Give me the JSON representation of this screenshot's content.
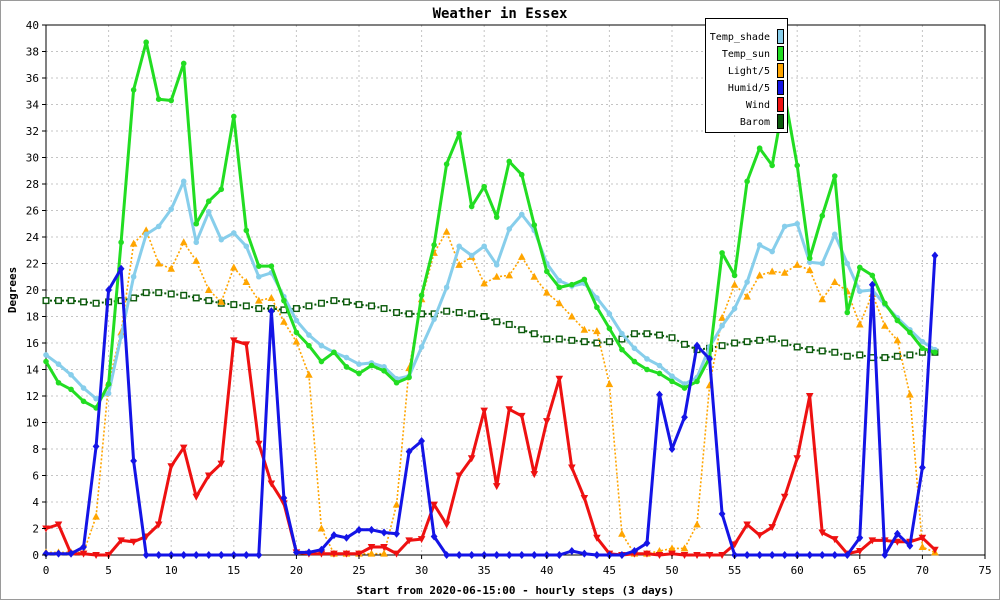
{
  "chart_data": {
    "type": "line",
    "title": "Weather in Essex",
    "xlabel": "Start from 2020-06-15:00 - hourly steps (3 days)",
    "ylabel": "Degrees",
    "xlim": [
      0,
      75
    ],
    "ylim": [
      0,
      40
    ],
    "xticks": [
      0,
      5,
      10,
      15,
      20,
      25,
      30,
      35,
      40,
      45,
      50,
      55,
      60,
      65,
      70,
      75
    ],
    "yticks": [
      0,
      2,
      4,
      6,
      8,
      10,
      12,
      14,
      16,
      18,
      20,
      22,
      24,
      26,
      28,
      30,
      32,
      34,
      36,
      38,
      40
    ],
    "grid": true,
    "legend": "top-right",
    "x": [
      0,
      1,
      2,
      3,
      4,
      5,
      6,
      7,
      8,
      9,
      10,
      11,
      12,
      13,
      14,
      15,
      16,
      17,
      18,
      19,
      20,
      21,
      22,
      23,
      24,
      25,
      26,
      27,
      28,
      29,
      30,
      31,
      32,
      33,
      34,
      35,
      36,
      37,
      38,
      39,
      40,
      41,
      42,
      43,
      44,
      45,
      46,
      47,
      48,
      49,
      50,
      51,
      52,
      53,
      54,
      55,
      56,
      57,
      58,
      59,
      60,
      61,
      62,
      63,
      64,
      65,
      66,
      67,
      68,
      69,
      70,
      71
    ],
    "series": [
      {
        "name": "Temp_shade",
        "color": "#87ceeb",
        "marker": "circle",
        "line_style": "solid",
        "values": [
          15.1,
          14.4,
          13.6,
          12.6,
          11.8,
          12.2,
          16.5,
          21.0,
          24.2,
          24.8,
          26.1,
          28.2,
          23.6,
          25.9,
          23.8,
          24.3,
          23.3,
          21.0,
          21.3,
          19.5,
          17.7,
          16.6,
          15.8,
          15.3,
          14.9,
          14.4,
          14.5,
          14.2,
          13.3,
          13.5,
          15.7,
          17.8,
          20.2,
          23.3,
          22.6,
          23.3,
          21.9,
          24.6,
          25.7,
          24.5,
          22.0,
          20.7,
          20.3,
          20.5,
          19.4,
          18.2,
          16.7,
          15.6,
          14.8,
          14.3,
          13.5,
          12.9,
          13.4,
          15.7,
          17.3,
          18.6,
          20.6,
          23.4,
          22.9,
          24.8,
          25.0,
          22.1,
          22.0,
          24.2,
          22.0,
          19.9,
          20.0,
          18.9,
          17.9,
          17.0,
          16.1,
          15.5
        ]
      },
      {
        "name": "Temp_sun",
        "color": "#22dd22",
        "marker": "circle",
        "line_style": "solid",
        "values": [
          14.6,
          13.0,
          12.5,
          11.6,
          11.1,
          12.9,
          23.6,
          35.1,
          38.7,
          34.4,
          34.3,
          37.1,
          25.0,
          26.7,
          27.6,
          33.1,
          24.5,
          21.8,
          21.8,
          19.2,
          16.8,
          15.8,
          14.6,
          15.3,
          14.2,
          13.7,
          14.3,
          13.9,
          13.0,
          13.4,
          19.6,
          23.4,
          29.5,
          31.8,
          26.3,
          27.8,
          25.5,
          29.7,
          28.7,
          24.9,
          21.4,
          20.2,
          20.4,
          20.8,
          18.7,
          17.1,
          15.5,
          14.6,
          14.0,
          13.7,
          13.1,
          12.6,
          13.1,
          14.9,
          22.8,
          21.1,
          28.2,
          30.7,
          29.4,
          34.7,
          29.4,
          22.4,
          25.6,
          28.6,
          18.3,
          21.7,
          21.1,
          19.0,
          17.7,
          16.8,
          15.6,
          15.3
        ]
      },
      {
        "name": "Light/5",
        "color": "#ffa500",
        "marker": "triangle-up",
        "line_style": "dotted",
        "values": [
          0.2,
          0.2,
          0.2,
          0.2,
          2.9,
          13.0,
          16.8,
          23.5,
          24.5,
          22.0,
          21.6,
          23.6,
          22.2,
          20.0,
          19.1,
          21.7,
          20.6,
          19.2,
          19.4,
          17.6,
          16.1,
          13.6,
          2.0,
          0.1,
          0.1,
          0.1,
          0.1,
          0.1,
          3.8,
          14.1,
          19.3,
          22.8,
          24.4,
          21.9,
          22.5,
          20.5,
          21.0,
          21.1,
          22.5,
          21.0,
          19.8,
          19.0,
          18.0,
          17.0,
          16.9,
          12.9,
          1.6,
          0.1,
          0.1,
          0.3,
          0.5,
          0.5,
          2.3,
          12.8,
          17.9,
          20.4,
          19.5,
          21.1,
          21.4,
          21.3,
          21.9,
          21.5,
          19.3,
          20.6,
          19.9,
          17.4,
          19.7,
          17.3,
          16.2,
          12.1,
          0.6,
          0.2
        ]
      },
      {
        "name": "Humid/5",
        "color": "#1414e6",
        "marker": "diamond",
        "line_style": "solid",
        "values": [
          0.1,
          0.1,
          0.1,
          0.6,
          8.2,
          20.0,
          21.6,
          7.1,
          0.0,
          0.0,
          0.0,
          0.0,
          0.0,
          0.0,
          0.0,
          0.0,
          0.0,
          0.0,
          18.4,
          4.3,
          0.2,
          0.2,
          0.4,
          1.5,
          1.3,
          1.9,
          1.9,
          1.7,
          1.6,
          7.8,
          8.6,
          1.4,
          0.0,
          0.0,
          0.0,
          0.0,
          0.0,
          0.0,
          0.0,
          0.0,
          0.0,
          0.0,
          0.3,
          0.1,
          0.0,
          0.0,
          0.0,
          0.3,
          0.9,
          12.1,
          8.0,
          10.4,
          15.8,
          14.8,
          3.1,
          0.0,
          0.0,
          0.0,
          0.0,
          0.0,
          0.0,
          0.0,
          0.0,
          0.0,
          0.0,
          1.3,
          20.4,
          0.0,
          1.6,
          0.7,
          6.6,
          22.6
        ]
      },
      {
        "name": "Wind",
        "color": "#ee1111",
        "marker": "triangle-down",
        "line_style": "solid",
        "values": [
          2.0,
          2.3,
          0.1,
          0.1,
          0.0,
          0.0,
          1.1,
          1.0,
          1.4,
          2.3,
          6.7,
          8.1,
          4.4,
          6.0,
          6.9,
          16.2,
          15.9,
          8.4,
          5.4,
          3.9,
          0.2,
          0.1,
          0.1,
          0.1,
          0.1,
          0.1,
          0.6,
          0.6,
          0.1,
          1.1,
          1.2,
          3.8,
          2.3,
          6.0,
          7.3,
          10.9,
          5.2,
          11.0,
          10.5,
          6.1,
          10.1,
          13.3,
          6.6,
          4.3,
          1.3,
          0.1,
          0.0,
          0.1,
          0.1,
          0.0,
          0.1,
          0.0,
          0.0,
          0.0,
          0.0,
          0.8,
          2.3,
          1.5,
          2.1,
          4.4,
          7.3,
          12.0,
          1.7,
          1.2,
          0.1,
          0.3,
          1.1,
          1.1,
          1.0,
          1.0,
          1.3,
          0.4
        ]
      },
      {
        "name": "Barom",
        "color": "#0b5a0b",
        "marker": "square",
        "line_style": "dotted",
        "values": [
          19.2,
          19.2,
          19.2,
          19.1,
          19.0,
          19.1,
          19.2,
          19.4,
          19.8,
          19.8,
          19.7,
          19.6,
          19.4,
          19.2,
          19.0,
          18.9,
          18.8,
          18.6,
          18.6,
          18.5,
          18.6,
          18.8,
          19.0,
          19.2,
          19.1,
          18.9,
          18.8,
          18.6,
          18.3,
          18.2,
          18.2,
          18.2,
          18.4,
          18.3,
          18.2,
          18.0,
          17.6,
          17.4,
          17.0,
          16.7,
          16.3,
          16.3,
          16.2,
          16.1,
          16.0,
          16.1,
          16.3,
          16.7,
          16.7,
          16.6,
          16.4,
          15.9,
          15.5,
          15.6,
          15.8,
          16.0,
          16.1,
          16.2,
          16.3,
          16.0,
          15.7,
          15.5,
          15.4,
          15.3,
          15.0,
          15.1,
          14.9,
          14.9,
          15.0,
          15.1,
          15.3,
          15.3
        ]
      }
    ]
  }
}
